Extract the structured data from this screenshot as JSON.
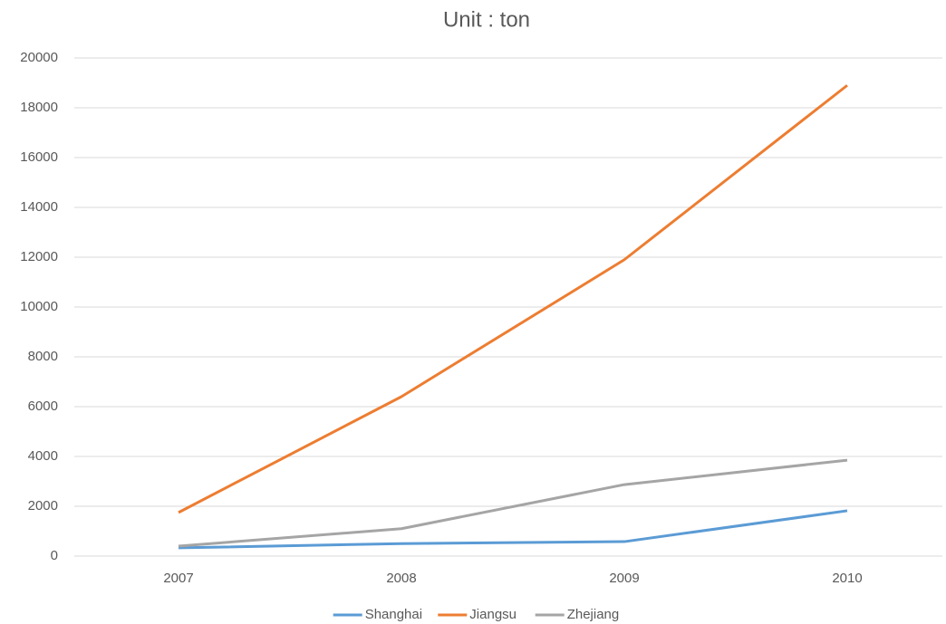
{
  "chart_data": {
    "type": "line",
    "title": "Unit : ton",
    "categories": [
      "2007",
      "2008",
      "2009",
      "2010"
    ],
    "series": [
      {
        "name": "Shanghai",
        "color": "#5b9bd5",
        "values": [
          330,
          500,
          580,
          1820
        ]
      },
      {
        "name": "Jiangsu",
        "color": "#ed7d31",
        "values": [
          1750,
          6400,
          11900,
          18900
        ]
      },
      {
        "name": "Zhejiang",
        "color": "#a5a5a5",
        "values": [
          400,
          1100,
          2870,
          3850
        ]
      }
    ],
    "ylim": [
      0,
      20000
    ],
    "yticks": [
      0,
      2000,
      4000,
      6000,
      8000,
      10000,
      12000,
      14000,
      16000,
      18000,
      20000
    ],
    "grid": true,
    "legend": "bottom"
  }
}
